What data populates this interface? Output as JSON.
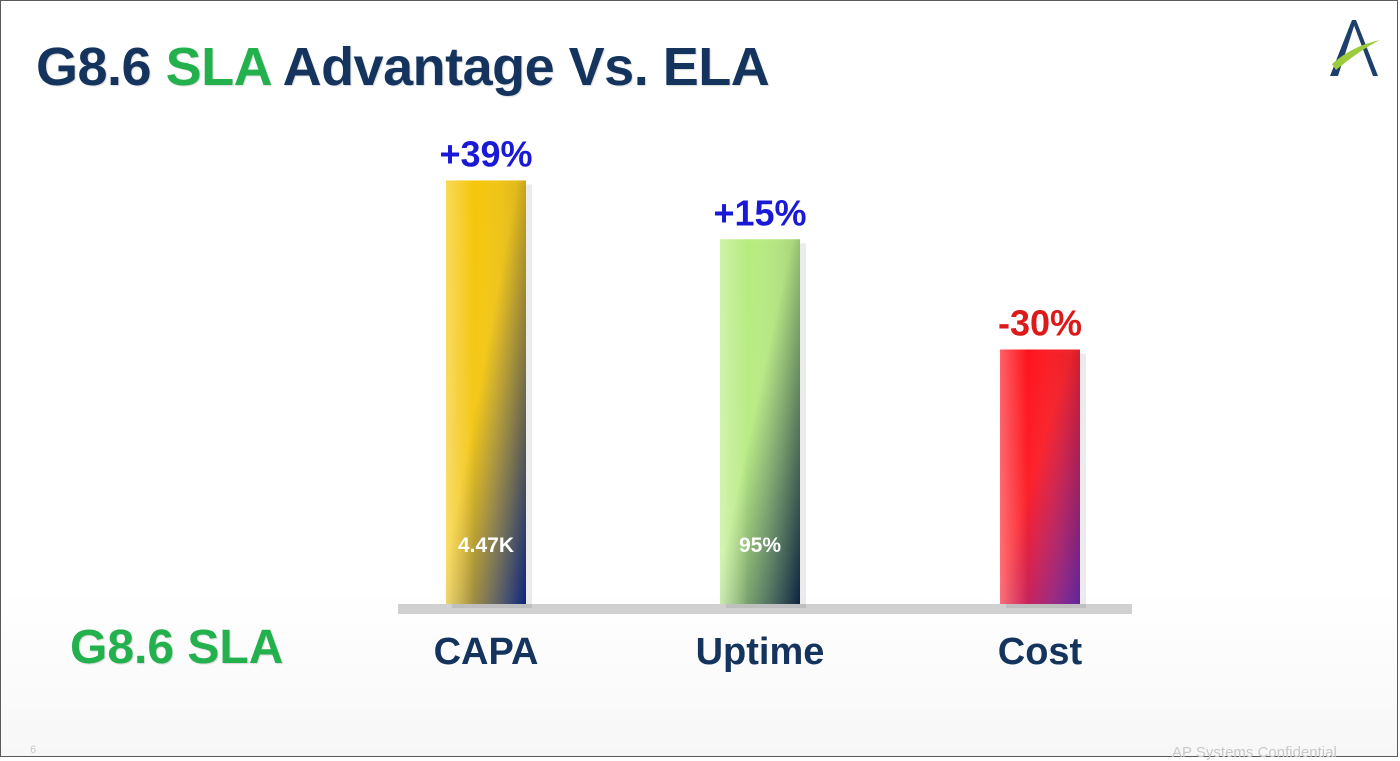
{
  "slide": {
    "title_parts": [
      {
        "text": "G8.6 ",
        "color": "#14345e"
      },
      {
        "text": "SLA",
        "color": "#22b14c"
      },
      {
        "text": " Advantage Vs. ELA",
        "color": "#14345e"
      }
    ],
    "series_label": "G8.6  SLA",
    "series_label_color": "#22b14c",
    "footer_left": "6",
    "footer_right": "AP Systems Confidential",
    "logo_icon": "company-logo-icon"
  },
  "chart_data": {
    "type": "bar",
    "title": "G8.6 SLA Advantage Vs. ELA",
    "categories": [
      "CAPA",
      "Uptime",
      "Cost"
    ],
    "series": [
      {
        "name": "G8.6  SLA",
        "values": [
          39,
          15,
          -30
        ]
      }
    ],
    "change_labels": [
      "+39%",
      "+15%",
      "-30%"
    ],
    "change_label_colors": [
      "#1a1ad6",
      "#1a1ad6",
      "#dd1a1a"
    ],
    "inner_labels": [
      "4.47K",
      "95%",
      ""
    ],
    "bar_gradients": [
      [
        "#f5c400",
        "#0d2a8c"
      ],
      [
        "#b4eb7a",
        "#0f2848"
      ],
      [
        "#ff0a14",
        "#6a2ab0"
      ]
    ],
    "baseline_color": "#d0d0d0",
    "xlabel": "",
    "ylabel": "",
    "grid": false,
    "legend": "none"
  }
}
